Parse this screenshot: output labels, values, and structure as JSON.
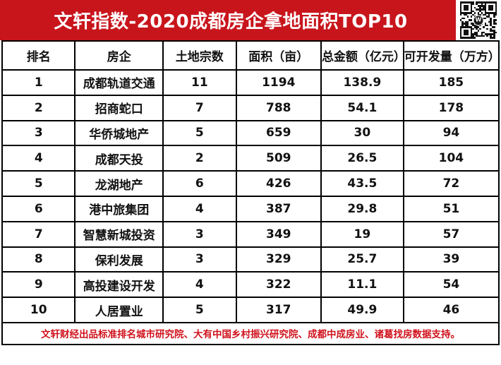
{
  "banner": {
    "title": "文轩指数-2020成都房企拿地面积TOP10"
  },
  "qr": {
    "icon": "qr-code",
    "center_letter": "W"
  },
  "chart_data": {
    "type": "table",
    "title": "文轩指数-2020成都房企拿地面积TOP10",
    "columns": [
      "排名",
      "房企",
      "土地宗数",
      "面积（亩）",
      "总金额（亿元）",
      "可开发量（万方）"
    ],
    "rows": [
      [
        1,
        "成都轨道交通",
        11,
        1194,
        138.9,
        185
      ],
      [
        2,
        "招商蛇口",
        7,
        788,
        54.1,
        178
      ],
      [
        3,
        "华侨城地产",
        5,
        659,
        30,
        94
      ],
      [
        4,
        "成都天投",
        2,
        509,
        26.5,
        104
      ],
      [
        5,
        "龙湖地产",
        6,
        426,
        43.5,
        72
      ],
      [
        6,
        "港中旅集团",
        4,
        387,
        29.8,
        51
      ],
      [
        7,
        "智慧新城投资",
        3,
        349,
        19,
        57
      ],
      [
        8,
        "保利发展",
        3,
        329,
        25.7,
        39
      ],
      [
        9,
        "高投建设开发",
        4,
        322,
        11.1,
        54
      ],
      [
        10,
        "人居置业",
        5,
        317,
        49.9,
        46
      ]
    ],
    "footnote": "文轩财经出品标准排名城市研究院、大有中国乡村振兴研究院、成都中成房业、诸葛找房数据支持。"
  },
  "colors": {
    "banner_red": "#c8151c",
    "footer_red": "#d0111b",
    "border_black": "#000000",
    "qr_module": "#111111"
  }
}
